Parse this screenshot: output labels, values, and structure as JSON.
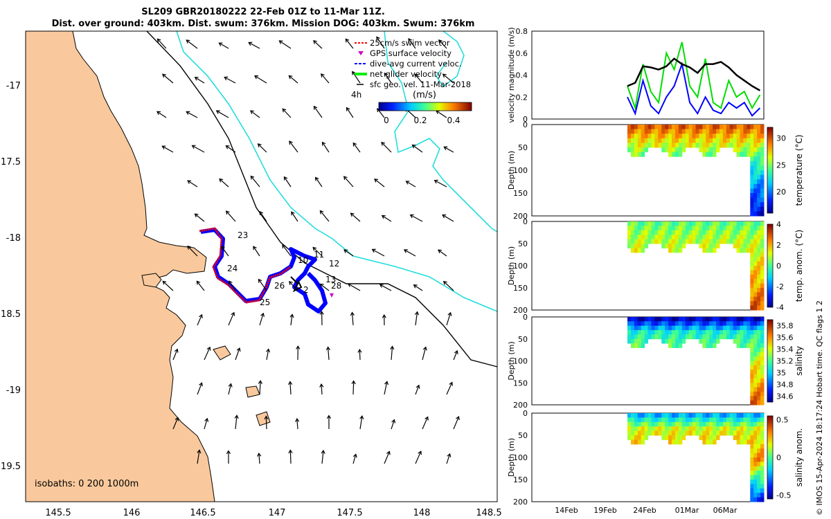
{
  "title_line1": "SL209 GBR20180222 22-Feb 01Z to 11-Mar 11Z.",
  "title_line2": "Dist. over ground: 403km. Dist. swum: 376km. Mission DOG: 403km. Swum: 376km",
  "map": {
    "lon_ticks": [
      "145.5",
      "146",
      "146.5",
      "147",
      "147.5",
      "148",
      "148.5"
    ],
    "lat_ticks": [
      "-17",
      "17.5",
      "-18",
      "18.5",
      "-19",
      "19.5"
    ],
    "isobath_note": "isobaths: 0   200  1000m",
    "legend": [
      {
        "label": "25cm/s swim vector",
        "color": "#ff0000"
      },
      {
        "label": "GPS surface velocity",
        "color": "#cc00cc"
      },
      {
        "label": "dive-avg current veloc.",
        "color": "#0000ff"
      },
      {
        "label": "net glider velocity",
        "color": "#00ee00"
      },
      {
        "label": "sfc geo. vel. 11-Mar-2018",
        "color": "#000000"
      }
    ],
    "time_marker": "4h",
    "colorbar_title": "(m/s)",
    "colorbar_ticks": [
      "0",
      "0.2",
      "0.4"
    ],
    "day_labels": [
      "23",
      "24",
      "25",
      "26",
      "10",
      "11",
      "12",
      "13",
      "28",
      "2"
    ],
    "colors": {
      "land": "#f9c99d",
      "ocean": "#ffffff",
      "isobath200": "#000000",
      "isobath1000": "#22dddd"
    }
  },
  "chart_data": [
    {
      "type": "line",
      "title": "",
      "ylabel": "velocity magnitude (m/s)",
      "ylim": [
        0,
        0.8
      ],
      "yticks": [
        "0",
        "0.2",
        "0.4",
        "0.6",
        "0.8"
      ],
      "x_dates": [
        "14Feb",
        "19Feb",
        "24Feb",
        "01Mar",
        "06Mar"
      ],
      "series": [
        {
          "name": "net glider velocity",
          "color": "#00dd00",
          "x_day": [
            22.0,
            23,
            24,
            25,
            26,
            27,
            28,
            29,
            30,
            31,
            32,
            33,
            34,
            35,
            36,
            37,
            38,
            39
          ],
          "values": [
            0.3,
            0.1,
            0.5,
            0.25,
            0.15,
            0.6,
            0.45,
            0.7,
            0.3,
            0.2,
            0.55,
            0.15,
            0.1,
            0.35,
            0.2,
            0.25,
            0.1,
            0.22
          ]
        },
        {
          "name": "dive-avg current veloc.",
          "color": "#0000ff",
          "x_day": [
            22.0,
            23,
            24,
            25,
            26,
            27,
            28,
            29,
            30,
            31,
            32,
            33,
            34,
            35,
            36,
            37,
            38,
            39
          ],
          "values": [
            0.2,
            0.05,
            0.35,
            0.12,
            0.05,
            0.2,
            0.3,
            0.5,
            0.15,
            0.05,
            0.2,
            0.08,
            0.05,
            0.15,
            0.1,
            0.15,
            0.03,
            0.1
          ]
        },
        {
          "name": "sfc geo. vel.",
          "color": "#000000",
          "x_day": [
            22.0,
            23,
            24,
            25,
            26,
            27,
            28,
            29,
            30,
            31,
            32,
            33,
            34,
            35,
            36,
            37,
            38,
            39
          ],
          "values": [
            0.3,
            0.33,
            0.48,
            0.47,
            0.45,
            0.48,
            0.55,
            0.5,
            0.47,
            0.42,
            0.5,
            0.5,
            0.52,
            0.47,
            0.4,
            0.35,
            0.3,
            0.26
          ]
        }
      ]
    },
    {
      "type": "heatmap",
      "ylabel": "Depth (m)",
      "colorbar_label": "temperature (°C)",
      "ylim": [
        200,
        0
      ],
      "yticks": [
        "0",
        "50",
        "100",
        "150",
        "200"
      ],
      "colorbar_ticks": [
        "20",
        "25",
        "30"
      ],
      "value_range": [
        16,
        32
      ],
      "profile": {
        "surface": 29.5,
        "mid": 27,
        "deep": 22,
        "bottom": 17
      }
    },
    {
      "type": "heatmap",
      "ylabel": "Depth (m)",
      "colorbar_label": "temp. anom. (°C)",
      "ylim": [
        200,
        0
      ],
      "yticks": [
        "0",
        "50",
        "100",
        "150",
        "200"
      ],
      "colorbar_ticks": [
        "-4",
        "-2",
        "0",
        "2",
        "4"
      ],
      "value_range": [
        -4,
        4
      ],
      "profile": {
        "surface": 0.2,
        "mid": 0.8,
        "deep": 1.5,
        "bottom": 3
      }
    },
    {
      "type": "heatmap",
      "ylabel": "Depth (m)",
      "colorbar_label": "salinity",
      "ylim": [
        200,
        0
      ],
      "yticks": [
        "0",
        "50",
        "100",
        "150",
        "200"
      ],
      "colorbar_ticks": [
        "34.6",
        "34.8",
        "35",
        "35.2",
        "35.4",
        "35.6",
        "35.8"
      ],
      "value_range": [
        34.5,
        35.9
      ],
      "profile": {
        "surface": 34.6,
        "mid": 35.1,
        "deep": 35.4,
        "bottom": 35.7
      }
    },
    {
      "type": "heatmap",
      "ylabel": "Depth (m)",
      "colorbar_label": "salinity anom.",
      "ylim": [
        200,
        0
      ],
      "yticks": [
        "0",
        "50",
        "100",
        "150",
        "200"
      ],
      "colorbar_ticks": [
        "-0.5",
        "0",
        "0.5"
      ],
      "value_range": [
        -0.55,
        0.55
      ],
      "profile": {
        "surface": -0.2,
        "mid": 0.15,
        "deep": 0.3,
        "bottom": -0.45
      }
    }
  ],
  "side_note": "© IMOS 15-Apr-2024 18:17:24 Hobart time. QC flags 1  2"
}
